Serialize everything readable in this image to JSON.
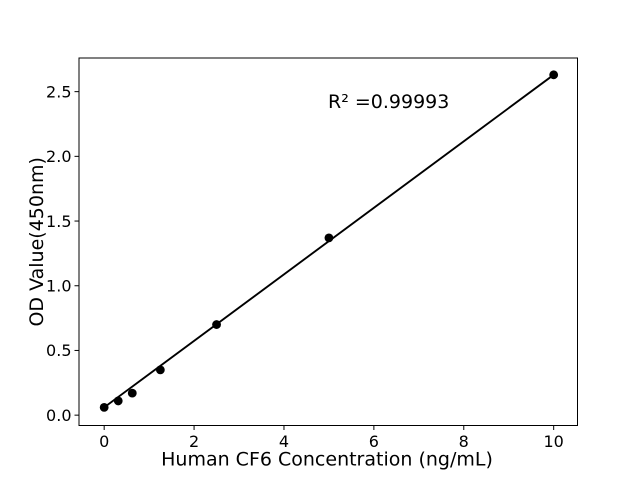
{
  "figure": {
    "background": "#ffffff"
  },
  "chart_data": {
    "type": "scatter",
    "title": "",
    "xlabel": "Human CF6 Concentration (ng/mL)",
    "ylabel": "OD Value(450nm)",
    "annotation": "R² =0.99993",
    "r_squared": 0.99993,
    "points": {
      "x": [
        0,
        0.313,
        0.625,
        1.25,
        2.5,
        5,
        10
      ],
      "y": [
        0.06,
        0.11,
        0.17,
        0.35,
        0.7,
        1.37,
        2.63
      ]
    },
    "fit_line": {
      "x": [
        0,
        10
      ],
      "y": [
        0.06,
        2.63
      ]
    },
    "xlim": [
      -0.56,
      10.53
    ],
    "ylim": [
      -0.08,
      2.76
    ],
    "xticks": {
      "values": [
        0,
        2,
        4,
        6,
        8,
        10
      ],
      "labels": [
        "0",
        "2",
        "4",
        "6",
        "8",
        "10"
      ]
    },
    "yticks": {
      "values": [
        0,
        0.5,
        1.0,
        1.5,
        2.0,
        2.5
      ],
      "labels": [
        "0.0",
        "0.5",
        "1.0",
        "1.5",
        "2.0",
        "2.5"
      ]
    },
    "grid": false,
    "legend": null,
    "colors": {
      "marker": "#000000",
      "line": "#000000",
      "axis": "#000000",
      "text": "#000000"
    }
  }
}
